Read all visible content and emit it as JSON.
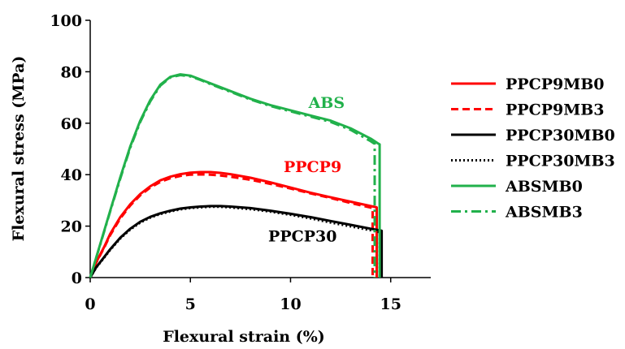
{
  "chart_data": {
    "type": "line",
    "title": "",
    "xlabel": "Flexural strain (%)",
    "ylabel": "Flexural stress (MPa)",
    "xlim": [
      0,
      17
    ],
    "ylim": [
      0,
      100
    ],
    "xticks": [
      0,
      5,
      10,
      15
    ],
    "yticks": [
      0,
      20,
      40,
      60,
      80,
      100
    ],
    "grid": false,
    "legend_position": "right",
    "series": [
      {
        "name": "PPCP9MB0",
        "color": "#ff0000",
        "dash": "solid",
        "x": [
          0,
          0.3,
          0.7,
          1.0,
          1.5,
          2.0,
          2.5,
          3.0,
          3.5,
          4.0,
          4.5,
          5.0,
          5.5,
          6.0,
          6.5,
          7.0,
          8.0,
          9.0,
          10.0,
          11.0,
          12.0,
          13.0,
          14.0,
          14.25,
          14.3,
          14.3
        ],
        "y": [
          0,
          6,
          12,
          17,
          23.5,
          28.5,
          32.5,
          35.5,
          37.8,
          39.2,
          40.2,
          40.8,
          41.0,
          41.0,
          40.7,
          40.2,
          38.8,
          37.0,
          35.0,
          33.0,
          31.2,
          29.5,
          27.8,
          27.4,
          27.3,
          0
        ]
      },
      {
        "name": "PPCP9MB3",
        "color": "#ff0000",
        "dash": "dashed",
        "x": [
          0,
          0.3,
          0.7,
          1.0,
          1.5,
          2.0,
          2.5,
          3.0,
          3.5,
          4.0,
          4.5,
          5.0,
          5.5,
          6.0,
          6.5,
          7.0,
          8.0,
          9.0,
          10.0,
          11.0,
          12.0,
          13.0,
          14.0,
          14.1,
          14.1
        ],
        "y": [
          0,
          5.8,
          11.7,
          16.5,
          23,
          28,
          32,
          35,
          37.2,
          38.6,
          39.5,
          40.0,
          40.1,
          40.0,
          39.7,
          39.2,
          38.0,
          36.4,
          34.6,
          32.7,
          30.9,
          29.0,
          27.2,
          27.0,
          0
        ]
      },
      {
        "name": "PPCP30MB0",
        "color": "#000000",
        "dash": "solid",
        "x": [
          0,
          0.3,
          0.7,
          1.0,
          1.5,
          2.0,
          2.5,
          3.0,
          3.5,
          4.0,
          4.5,
          5.0,
          5.5,
          6.0,
          6.5,
          7.0,
          8.0,
          9.0,
          10.0,
          11.0,
          12.0,
          13.0,
          14.0,
          14.5,
          14.55,
          14.55
        ],
        "y": [
          0,
          4,
          8,
          11,
          15.5,
          19,
          21.7,
          23.6,
          25,
          26,
          26.8,
          27.3,
          27.6,
          27.8,
          27.8,
          27.6,
          27.0,
          26.0,
          24.8,
          23.5,
          22.0,
          20.5,
          19.0,
          18.3,
          18.2,
          0
        ]
      },
      {
        "name": "PPCP30MB3",
        "color": "#000000",
        "dash": "dotted",
        "x": [
          0,
          0.3,
          0.7,
          1.0,
          1.5,
          2.0,
          2.5,
          3.0,
          3.5,
          4.0,
          4.5,
          5.0,
          5.5,
          6.0,
          6.5,
          7.0,
          8.0,
          9.0,
          10.0,
          11.0,
          12.0,
          13.0,
          14.0,
          14.4,
          14.45,
          14.45
        ],
        "y": [
          0,
          3.9,
          7.8,
          10.8,
          15.2,
          18.7,
          21.4,
          23.3,
          24.7,
          25.7,
          26.5,
          27.0,
          27.3,
          27.5,
          27.5,
          27.3,
          26.6,
          25.6,
          24.4,
          23.0,
          21.4,
          19.9,
          18.4,
          17.7,
          17.6,
          0
        ]
      },
      {
        "name": "ABSMB0",
        "color": "#21b14b",
        "dash": "solid",
        "x": [
          0,
          0.5,
          1.0,
          1.5,
          2.0,
          2.5,
          3.0,
          3.5,
          4.0,
          4.5,
          5.0,
          5.5,
          6.0,
          7.0,
          8.0,
          9.0,
          10.0,
          11.0,
          12.0,
          13.0,
          14.0,
          14.4,
          14.45,
          14.45
        ],
        "y": [
          0,
          13,
          26,
          39,
          51,
          61,
          69,
          75,
          78,
          79,
          78.5,
          77,
          75.5,
          72.5,
          69.5,
          67,
          65,
          63,
          61,
          58,
          54,
          52,
          51.8,
          0
        ]
      },
      {
        "name": "ABSMB3",
        "color": "#21b14b",
        "dash": "dashdot",
        "x": [
          0,
          0.5,
          1.0,
          1.5,
          2.0,
          2.5,
          3.0,
          3.5,
          4.0,
          4.5,
          5.0,
          5.5,
          6.0,
          7.0,
          8.0,
          9.0,
          10.0,
          11.0,
          12.0,
          13.0,
          14.0,
          14.2,
          14.2
        ],
        "y": [
          0,
          12.8,
          25.7,
          38.5,
          50.5,
          60.5,
          68.5,
          74.6,
          77.8,
          78.7,
          78.2,
          76.8,
          75.2,
          72.2,
          69.2,
          66.7,
          64.6,
          62.6,
          60.5,
          57.4,
          53.0,
          52.0,
          0
        ]
      }
    ],
    "annotations": [
      {
        "text": "ABS",
        "x": 11.8,
        "y": 66,
        "color": "#21b14b"
      },
      {
        "text": "PPCP9",
        "x": 11.1,
        "y": 41,
        "color": "#ff0000"
      },
      {
        "text": "PPCP30",
        "x": 10.6,
        "y": 14,
        "color": "#000000"
      }
    ]
  }
}
